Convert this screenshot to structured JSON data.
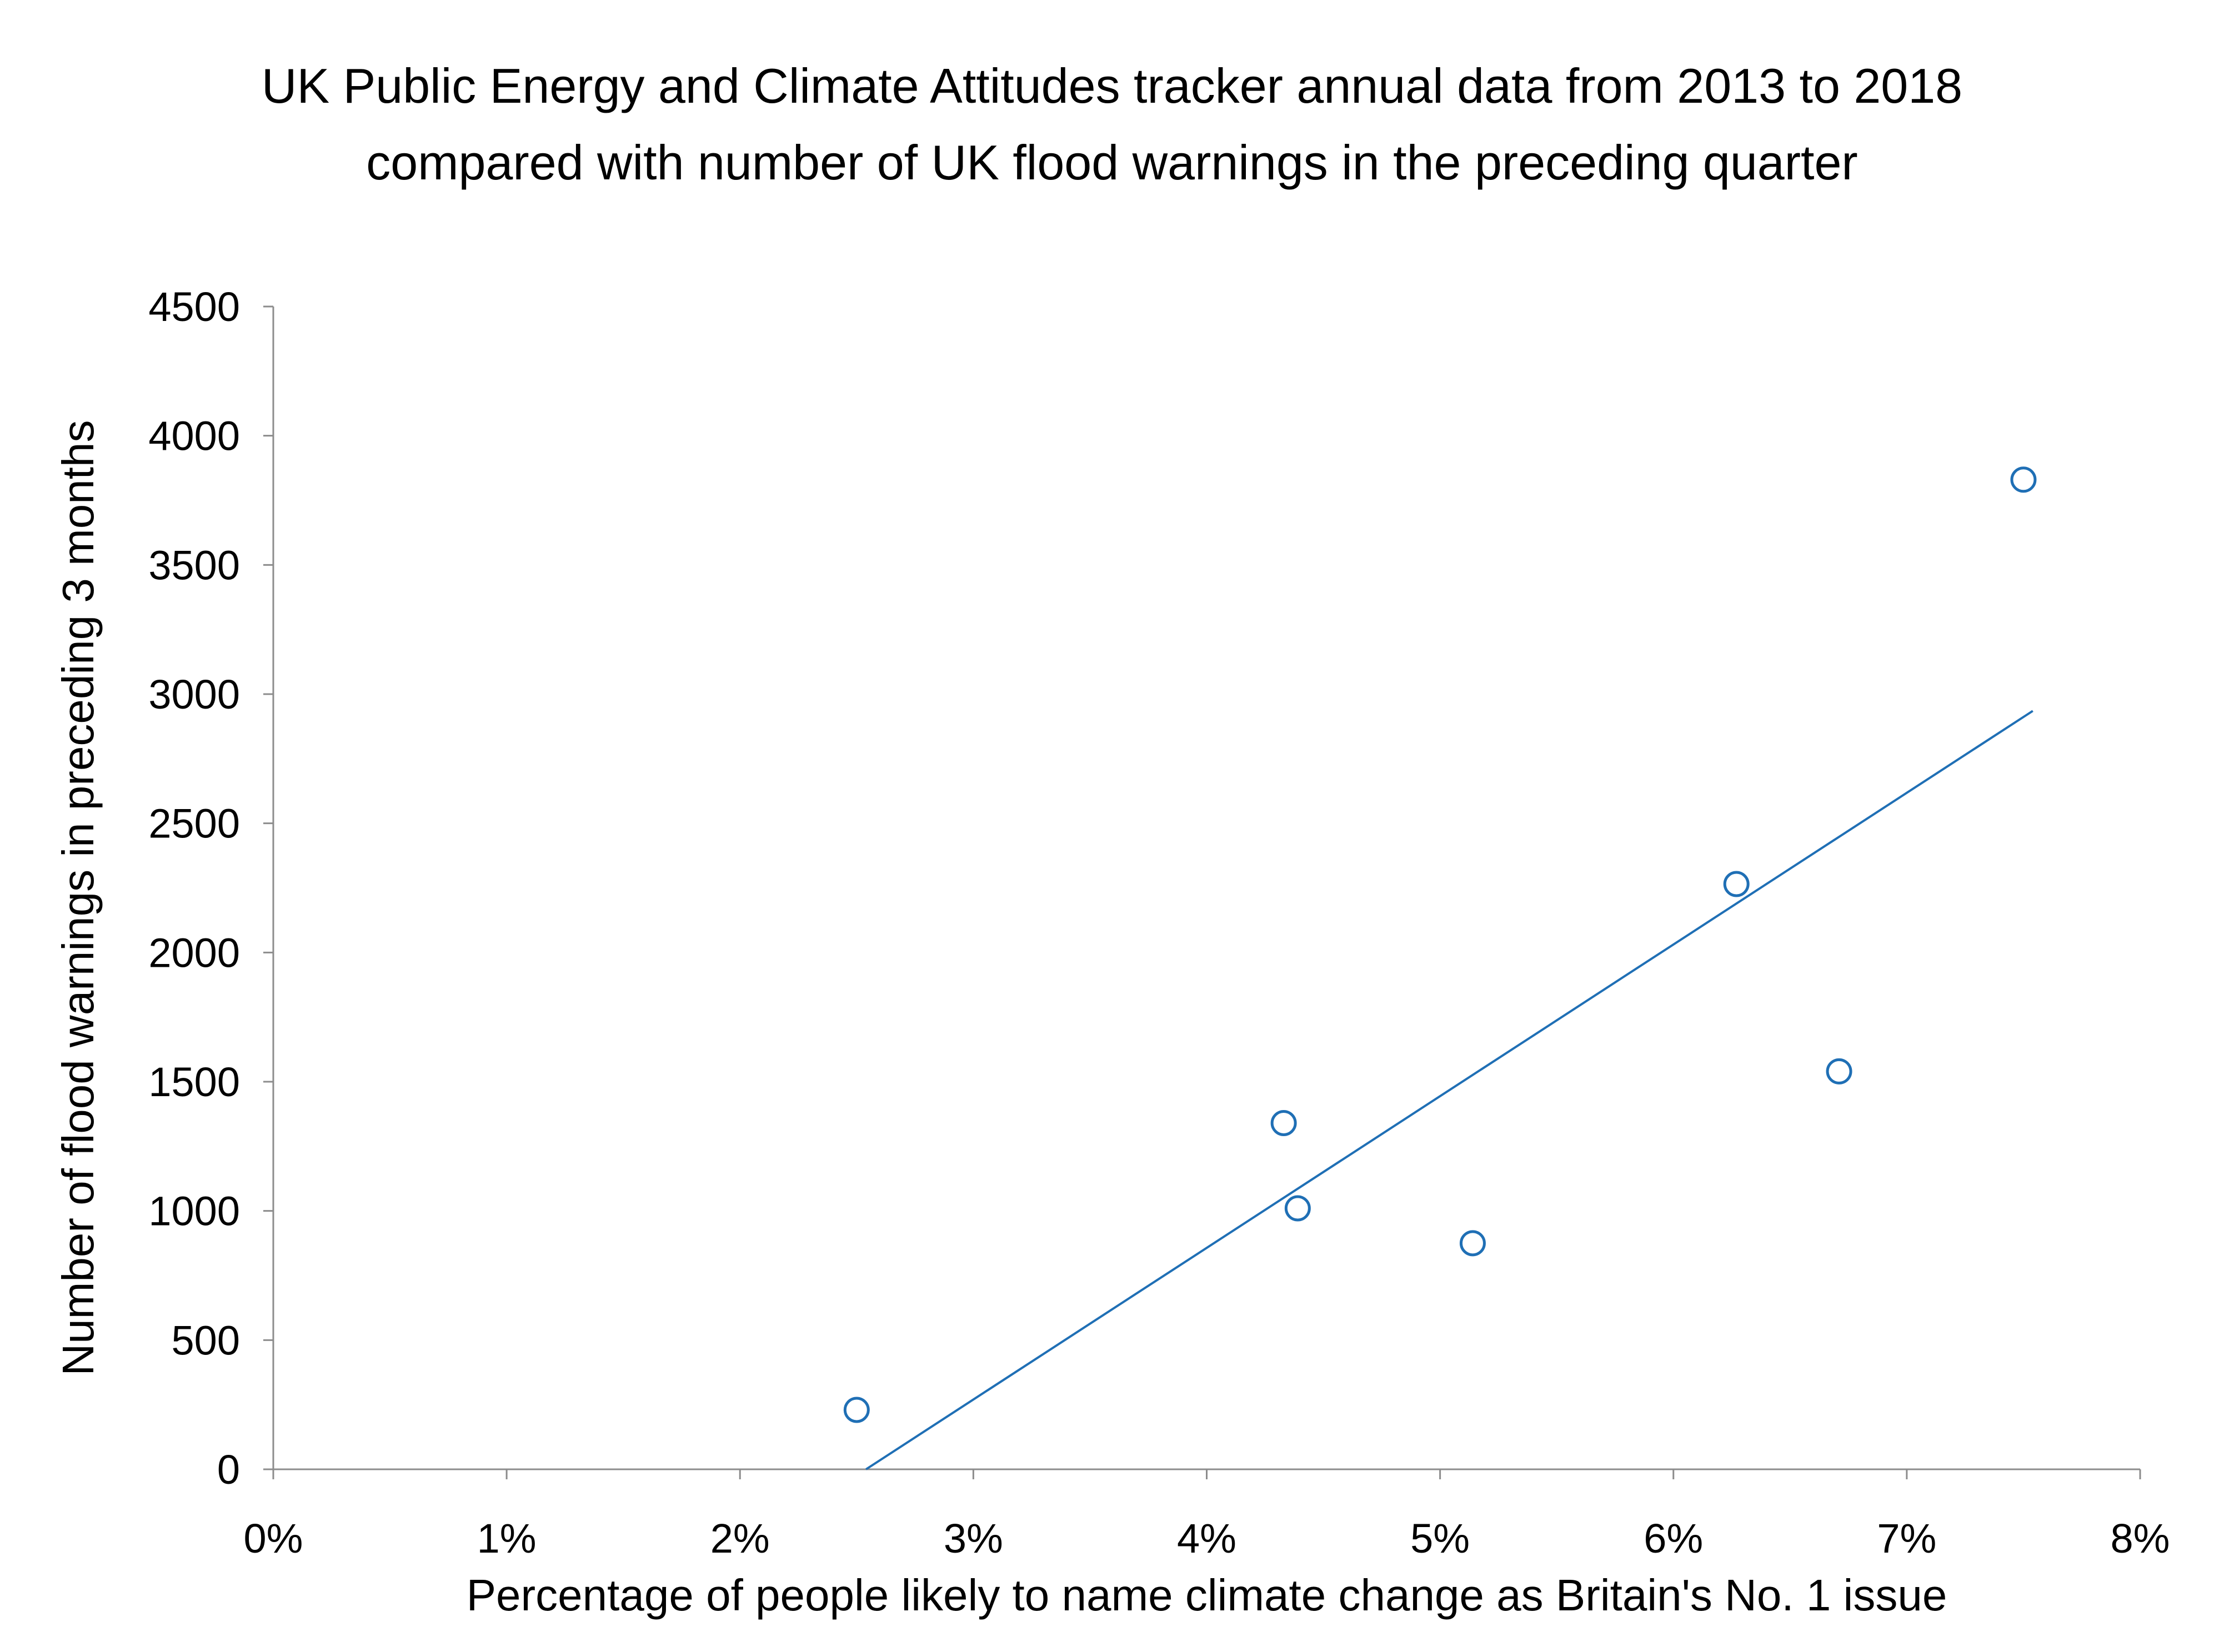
{
  "chart_data": {
    "type": "scatter",
    "title": "UK Public Energy and Climate Attitudes tracker annual data from 2013 to 2018",
    "subtitle": "compared with number of UK flood warnings in the preceding quarter",
    "xlabel": "Percentage of people likely to name climate change as Britain's No. 1 issue",
    "ylabel": "Number of flood warnings in preceding 3 months",
    "xlim": [
      0,
      8
    ],
    "ylim": [
      0,
      4500
    ],
    "x_ticks": [
      "0%",
      "1%",
      "2%",
      "3%",
      "4%",
      "5%",
      "6%",
      "7%",
      "8%"
    ],
    "y_ticks": [
      "0",
      "500",
      "1000",
      "1500",
      "2000",
      "2500",
      "3000",
      "3500",
      "4000",
      "4500"
    ],
    "grid": false,
    "series": [
      {
        "points": [
          {
            "x": 2.5,
            "y": 230
          },
          {
            "x": 4.33,
            "y": 1340
          },
          {
            "x": 4.39,
            "y": 1010
          },
          {
            "x": 5.14,
            "y": 875
          },
          {
            "x": 6.27,
            "y": 2265
          },
          {
            "x": 6.71,
            "y": 1540
          },
          {
            "x": 7.5,
            "y": 3830
          }
        ],
        "marker": "open-circle",
        "color": "#1f6fb5"
      }
    ],
    "trendline": {
      "type": "linear",
      "from": {
        "x": 2.54,
        "y": 0
      },
      "to": {
        "x": 7.54,
        "y": 2935
      },
      "color": "#1f6fb5"
    }
  }
}
